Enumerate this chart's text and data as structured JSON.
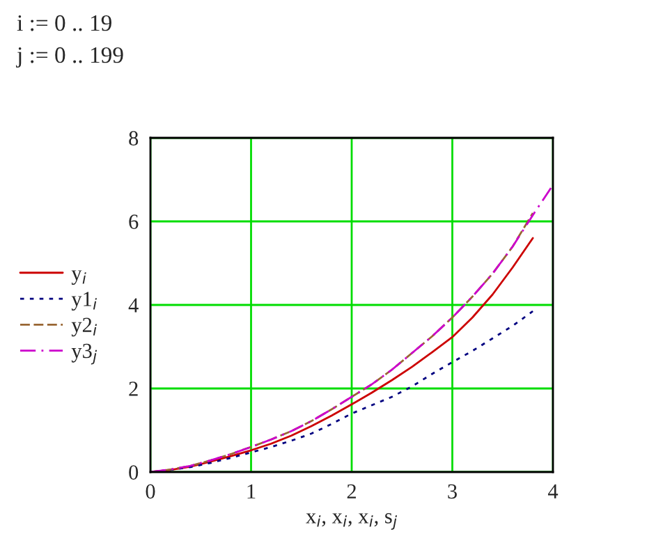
{
  "chart_data": {
    "type": "line",
    "annotations": [
      "i := 0 .. 19",
      "j := 0 .. 199"
    ],
    "xlabel": "x$_{i}$, x$_{i}$, x$_{i}$, s$_{j}$",
    "x": [
      0,
      0.2,
      0.4,
      0.6,
      0.8,
      1.0,
      1.2,
      1.4,
      1.6,
      1.8,
      2.0,
      2.2,
      2.4,
      2.6,
      2.8,
      3.0,
      3.2,
      3.4,
      3.6,
      3.8
    ],
    "series": [
      {
        "name": "y$_{i}$",
        "color": "#cc0000",
        "line_style": "solid",
        "values": [
          0,
          0.05,
          0.13,
          0.25,
          0.38,
          0.52,
          0.68,
          0.87,
          1.1,
          1.35,
          1.62,
          1.9,
          2.2,
          2.52,
          2.87,
          3.23,
          3.7,
          4.25,
          4.9,
          5.6
        ]
      },
      {
        "name": "y1$_{i}$",
        "color": "#000080",
        "line_style": "dotted",
        "values": [
          0,
          0.05,
          0.12,
          0.22,
          0.34,
          0.47,
          0.6,
          0.75,
          0.92,
          1.15,
          1.4,
          1.6,
          1.8,
          2.05,
          2.35,
          2.63,
          2.9,
          3.2,
          3.5,
          3.85
        ]
      },
      {
        "name": "y2$_{i}$",
        "color": "#996633",
        "line_style": "dashed",
        "values": [
          0,
          0.06,
          0.15,
          0.28,
          0.43,
          0.6,
          0.78,
          0.98,
          1.22,
          1.5,
          1.8,
          2.1,
          2.45,
          2.85,
          3.25,
          3.7,
          4.2,
          4.75,
          5.4,
          6.2
        ]
      },
      {
        "name": "y3$_{j}$",
        "color": "#cc00cc",
        "line_style": "dashdot",
        "x": [
          0,
          0.2,
          0.4,
          0.6,
          0.8,
          1.0,
          1.2,
          1.4,
          1.6,
          1.8,
          2.0,
          2.2,
          2.4,
          2.6,
          2.8,
          3.0,
          3.2,
          3.4,
          3.6,
          3.8,
          3.98
        ],
        "values": [
          0,
          0.06,
          0.15,
          0.28,
          0.43,
          0.6,
          0.78,
          0.98,
          1.22,
          1.5,
          1.8,
          2.1,
          2.45,
          2.85,
          3.25,
          3.7,
          4.2,
          4.75,
          5.4,
          6.15,
          6.8
        ]
      }
    ],
    "xlim": [
      0,
      4
    ],
    "xticks": [
      0,
      1,
      2,
      3,
      4
    ],
    "ylim": [
      0,
      8
    ],
    "yticks": [
      0,
      2,
      4,
      6,
      8
    ],
    "grid": true,
    "legend": "left"
  }
}
